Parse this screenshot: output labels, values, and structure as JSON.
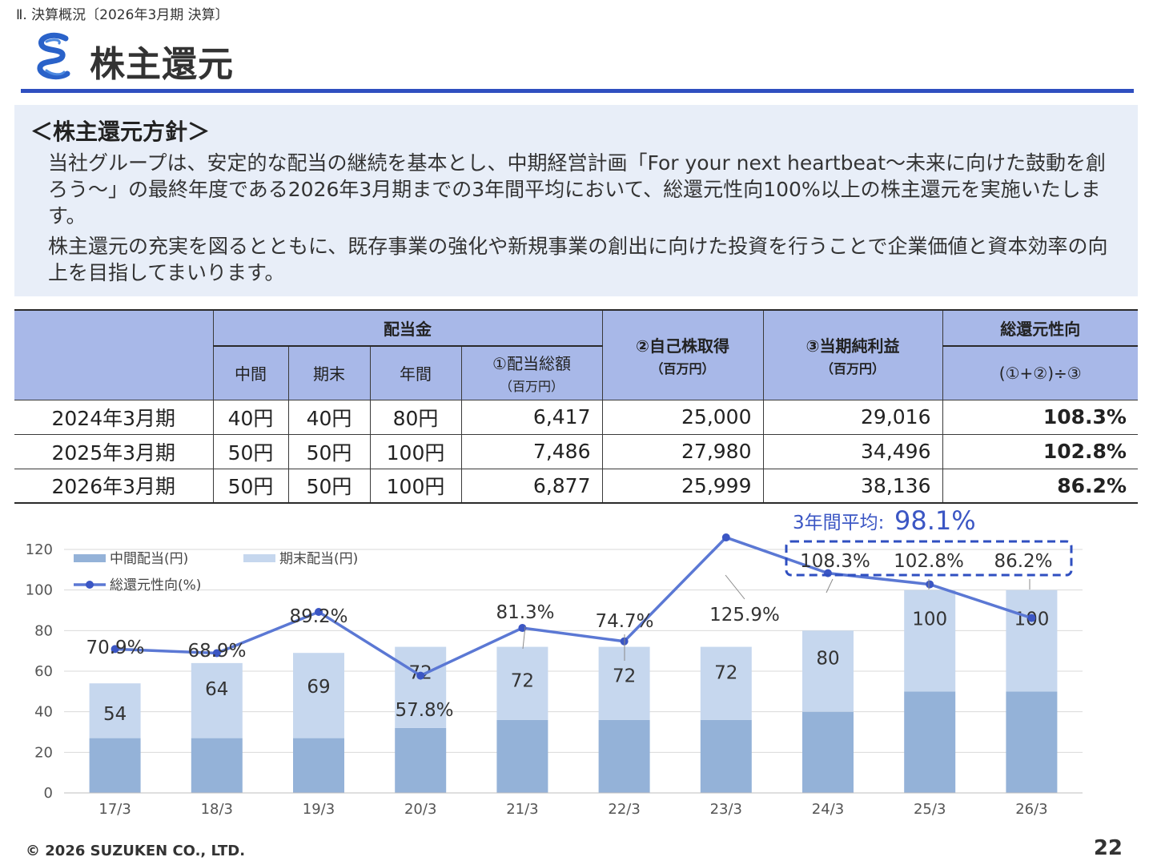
{
  "breadcrumb": "Ⅱ. 決算概況〔2026年3月期 決算〕",
  "title": "株主還元",
  "policy": {
    "heading": "＜株主還元方針＞",
    "paragraph1": "当社グループは、安定的な配当の継続を基本とし、中期経営計画「For your next heartbeat～未来に向けた鼓動を創ろう～」の最終年度である2026年3月期までの3年間平均において、総還元性向100%以上の株主還元を実施いたします。",
    "paragraph2": "株主還元の充実を図るとともに、既存事業の強化や新規事業の創出に向けた投資を行うことで企業価値と資本効率の向上を目指してまいります。"
  },
  "table": {
    "headers": {
      "dividend_group": "配当金",
      "interim": "中間",
      "year_end": "期末",
      "annual": "年間",
      "total_dividend": "①配当総額",
      "total_dividend_unit": "（百万円）",
      "buyback": "②自己株取得",
      "buyback_unit": "（百万円）",
      "net_income": "③当期純利益",
      "net_income_unit": "（百万円）",
      "payout": "総還元性向",
      "payout_formula": "(①+②)÷③"
    },
    "rows": [
      {
        "year": "2024年3月期",
        "interim": "40円",
        "year_end": "40円",
        "annual": "80円",
        "total_dividend": "6,417",
        "buyback": "25,000",
        "net_income": "29,016",
        "payout": "108.3%"
      },
      {
        "year": "2025年3月期",
        "interim": "50円",
        "year_end": "50円",
        "annual": "100円",
        "total_dividend": "7,486",
        "buyback": "27,980",
        "net_income": "34,496",
        "payout": "102.8%"
      },
      {
        "year": "2026年3月期",
        "interim": "50円",
        "year_end": "50円",
        "annual": "100円",
        "total_dividend": "6,877",
        "buyback": "25,999",
        "net_income": "38,136",
        "payout": "86.2%"
      }
    ]
  },
  "chart_data": {
    "type": "bar",
    "stacked": true,
    "categories": [
      "17/3",
      "18/3",
      "19/3",
      "20/3",
      "21/3",
      "22/3",
      "23/3",
      "24/3",
      "25/3",
      "26/3"
    ],
    "series": [
      {
        "name": "中間配当(円)",
        "values": [
          27,
          27,
          27,
          32,
          36,
          36,
          36,
          40,
          50,
          50
        ],
        "color": "#94b2d8"
      },
      {
        "name": "期末配当(円)",
        "values": [
          27,
          37,
          42,
          40,
          36,
          36,
          36,
          40,
          50,
          50
        ],
        "color": "#c6d7ee"
      },
      {
        "name": "総還元性向(%)",
        "type": "line",
        "values": [
          70.9,
          68.9,
          89.2,
          57.8,
          81.3,
          74.7,
          125.9,
          108.3,
          102.8,
          86.2
        ],
        "color": "#5b78d4"
      }
    ],
    "bar_total_labels": [
      "54",
      "64",
      "69",
      "72",
      "72",
      "72",
      "72",
      "80",
      "100",
      "100"
    ],
    "line_labels": [
      "70.9%",
      "68.9%",
      "89.2%",
      "57.8%",
      "81.3%",
      "74.7%",
      "125.9%",
      "108.3%",
      "102.8%",
      "86.2%"
    ],
    "y_ticks": [
      "0",
      "20",
      "40",
      "60",
      "80",
      "100",
      "120"
    ],
    "ylim": [
      0,
      120
    ],
    "legend_position": "top-left",
    "grid": true,
    "annotation": {
      "label": "3年間平均:",
      "value": "98.1%"
    }
  },
  "footer": {
    "copyright": "© 2026 SUZUKEN CO., LTD.",
    "page_number": "22"
  }
}
